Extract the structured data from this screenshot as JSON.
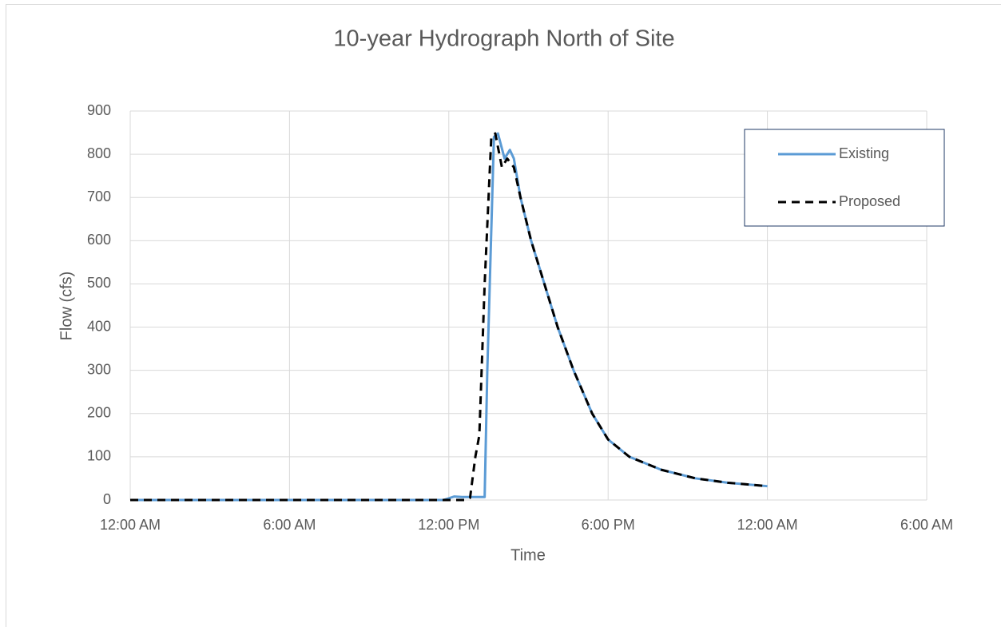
{
  "chart_data": {
    "type": "line",
    "title": "10-year Hydrograph North of Site",
    "x_label": "Time",
    "y_label": "Flow (cfs)",
    "xlim": [
      0,
      30
    ],
    "xticks": [
      {
        "value": 0,
        "label": "12:00 AM"
      },
      {
        "value": 6,
        "label": "6:00 AM"
      },
      {
        "value": 12,
        "label": "12:00 PM"
      },
      {
        "value": 18,
        "label": "6:00 PM"
      },
      {
        "value": 24,
        "label": "12:00 AM"
      },
      {
        "value": 30,
        "label": "6:00 AM"
      }
    ],
    "ylim": [
      0,
      900
    ],
    "yticks": [
      0,
      100,
      200,
      300,
      400,
      500,
      600,
      700,
      800,
      900
    ],
    "grid": true,
    "legend": "upper right",
    "series": [
      {
        "name": "Existing",
        "color": "#5b9bd5",
        "dash": false,
        "x": [
          0,
          11.8,
          12.2,
          12.5,
          13.35,
          13.45,
          13.7,
          13.85,
          14.1,
          14.3,
          14.45,
          14.7,
          15.1,
          15.6,
          16.1,
          16.7,
          17.4,
          18,
          18.8,
          20,
          21.3,
          22.5,
          24
        ],
        "values": [
          0,
          0,
          8,
          7,
          7,
          300,
          840,
          848,
          790,
          810,
          790,
          700,
          600,
          500,
          400,
          300,
          200,
          140,
          100,
          70,
          50,
          40,
          32
        ]
      },
      {
        "name": "Proposed",
        "color": "#000000",
        "dash": true,
        "x": [
          0,
          12.6,
          12.8,
          13.0,
          13.15,
          13.35,
          13.6,
          13.75,
          14.0,
          14.2,
          14.45,
          14.7,
          15.1,
          15.6,
          16.1,
          16.7,
          17.4,
          18,
          18.8,
          20,
          21.3,
          22.5,
          24
        ],
        "values": [
          0,
          0,
          5,
          100,
          150,
          500,
          840,
          848,
          770,
          790,
          770,
          700,
          600,
          500,
          400,
          300,
          200,
          140,
          100,
          70,
          50,
          40,
          32
        ]
      }
    ]
  }
}
